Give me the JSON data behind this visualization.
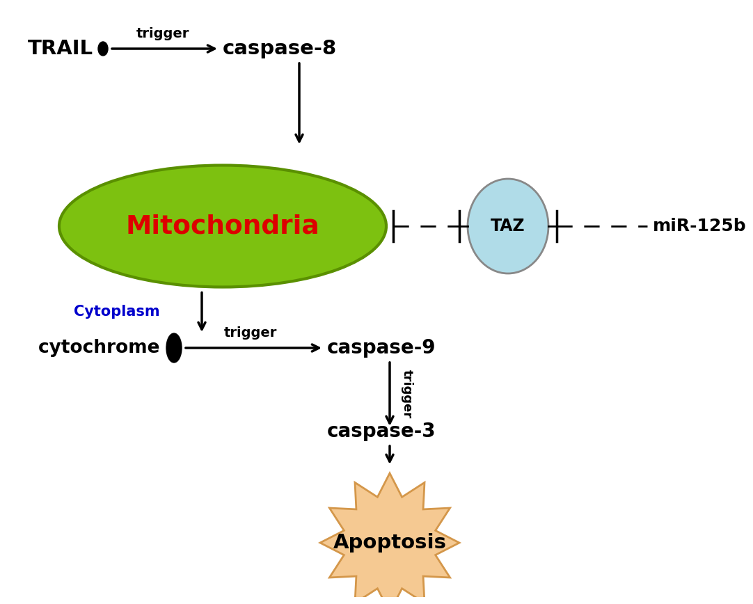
{
  "bg_color": "#ffffff",
  "trail_label": "TRAIL",
  "trail_dot_color": "#000000",
  "caspase8_label": "caspase-8",
  "trigger_label": "trigger",
  "mitochondria_label": "Mitochondria",
  "mitochondria_fill": "#7dc110",
  "mitochondria_edge": "#5a9000",
  "mitochondria_text_color": "#dd0000",
  "taz_label": "TAZ",
  "taz_fill": "#b0dce8",
  "taz_edge": "#888888",
  "mir_label": "miR-125b",
  "cytoplasm_label": "Cytoplasm",
  "cytoplasm_color": "#0000cc",
  "cytochrome_label": "cytochrome c",
  "caspase9_label": "caspase-9",
  "caspase3_label": "caspase-3",
  "apoptosis_label": "Apoptosis",
  "apoptosis_fill": "#f5c992",
  "apoptosis_edge": "#d4974a",
  "arrow_color": "#000000"
}
